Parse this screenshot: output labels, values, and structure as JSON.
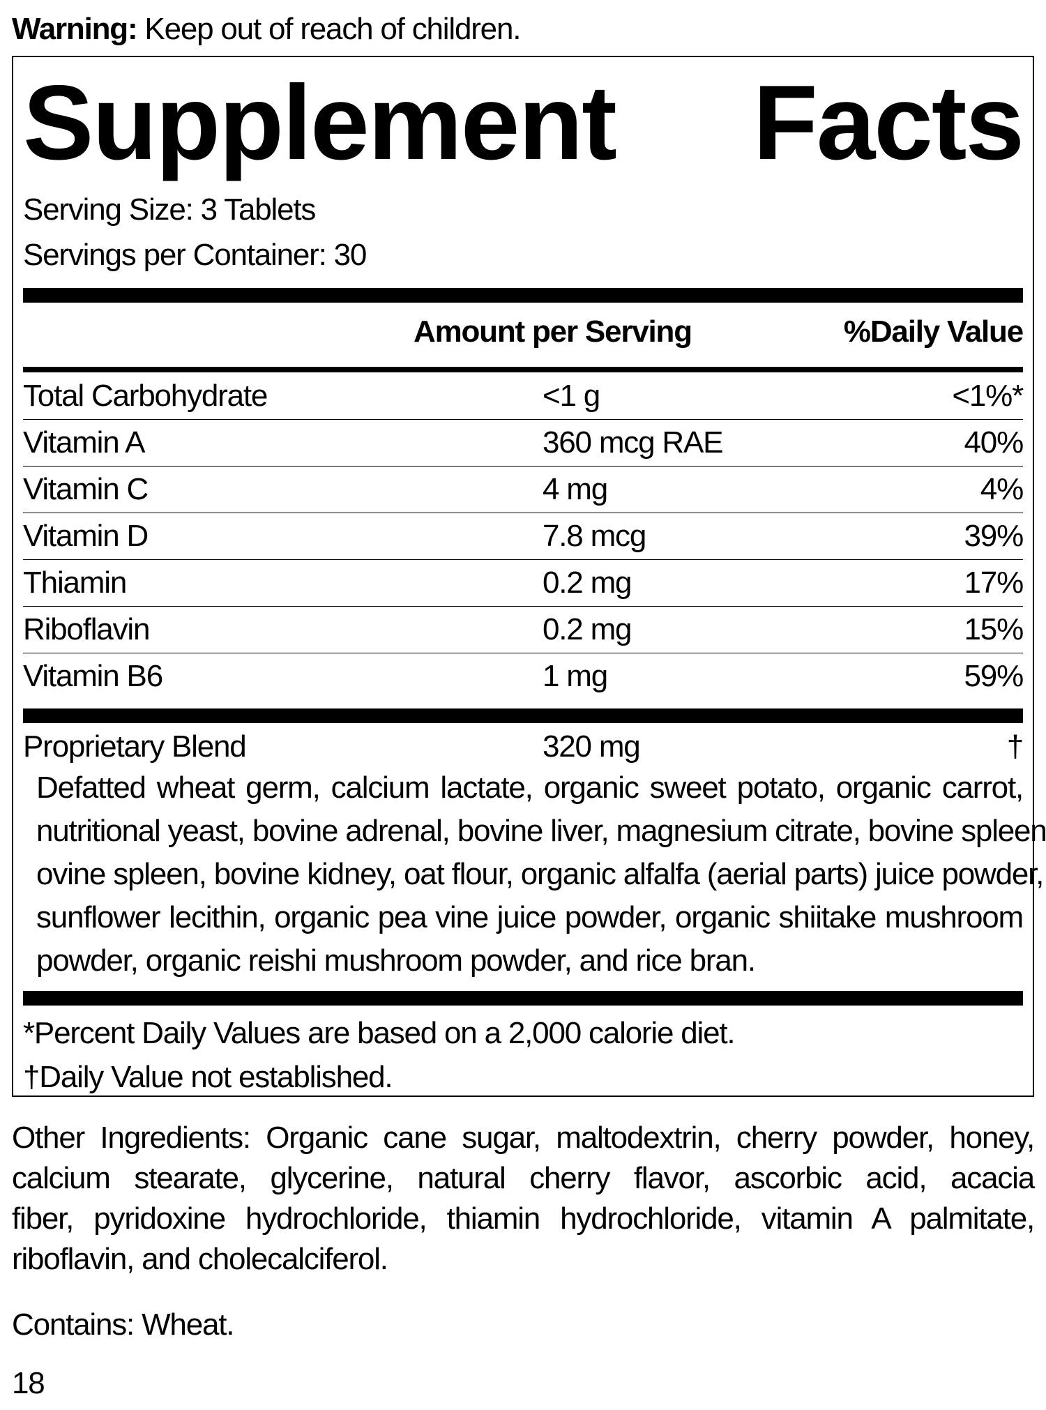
{
  "warning": {
    "label": "Warning:",
    "text": " Keep out of reach of children."
  },
  "title": {
    "word1": "Supplement",
    "word2": "Facts"
  },
  "serving_size": "Serving Size: 3 Tablets",
  "servings_per_container": "Servings per Container: 30",
  "header": {
    "amount": "Amount per Serving",
    "dv": "%Daily Value"
  },
  "nutrients": [
    {
      "name": "Total Carbohydrate",
      "amount": "<1 g",
      "dv": "<1%*"
    },
    {
      "name": "Vitamin A",
      "amount": "360 mcg RAE",
      "dv": "40%"
    },
    {
      "name": "Vitamin C",
      "amount": "4 mg",
      "dv": "4%"
    },
    {
      "name": "Vitamin D",
      "amount": "7.8 mcg",
      "dv": "39%"
    },
    {
      "name": "Thiamin",
      "amount": "0.2 mg",
      "dv": "17%"
    },
    {
      "name": "Riboflavin",
      "amount": "0.2 mg",
      "dv": "15%"
    },
    {
      "name": "Vitamin B6",
      "amount": "1 mg",
      "dv": "59%"
    }
  ],
  "blend": {
    "name": "Proprietary Blend",
    "amount": "320 mg",
    "dv": "†",
    "lines": [
      "Defatted wheat germ, calcium lactate, organic sweet potato, organic carrot,",
      "nutritional yeast, bovine adrenal, bovine liver, magnesium citrate, bovine spleen,",
      "ovine spleen, bovine kidney, oat flour, organic alfalfa (aerial parts) juice powder,",
      "sunflower lecithin, organic pea vine juice powder, organic shiitake mushroom",
      "powder, organic reishi mushroom powder, and rice bran."
    ]
  },
  "footnotes": [
    "*Percent Daily Values are based on a 2,000 calorie diet.",
    "†Daily Value not established."
  ],
  "other_ingredients": [
    "Other Ingredients: Organic cane sugar, maltodextrin, cherry powder, honey,",
    "calcium stearate, glycerine, natural cherry flavor, ascorbic acid, acacia",
    "fiber, pyridoxine hydrochloride, thiamin hydrochloride, vitamin A palmitate,",
    "riboflavin, and cholecalciferol."
  ],
  "contains": "Contains: Wheat.",
  "page_number": "18"
}
